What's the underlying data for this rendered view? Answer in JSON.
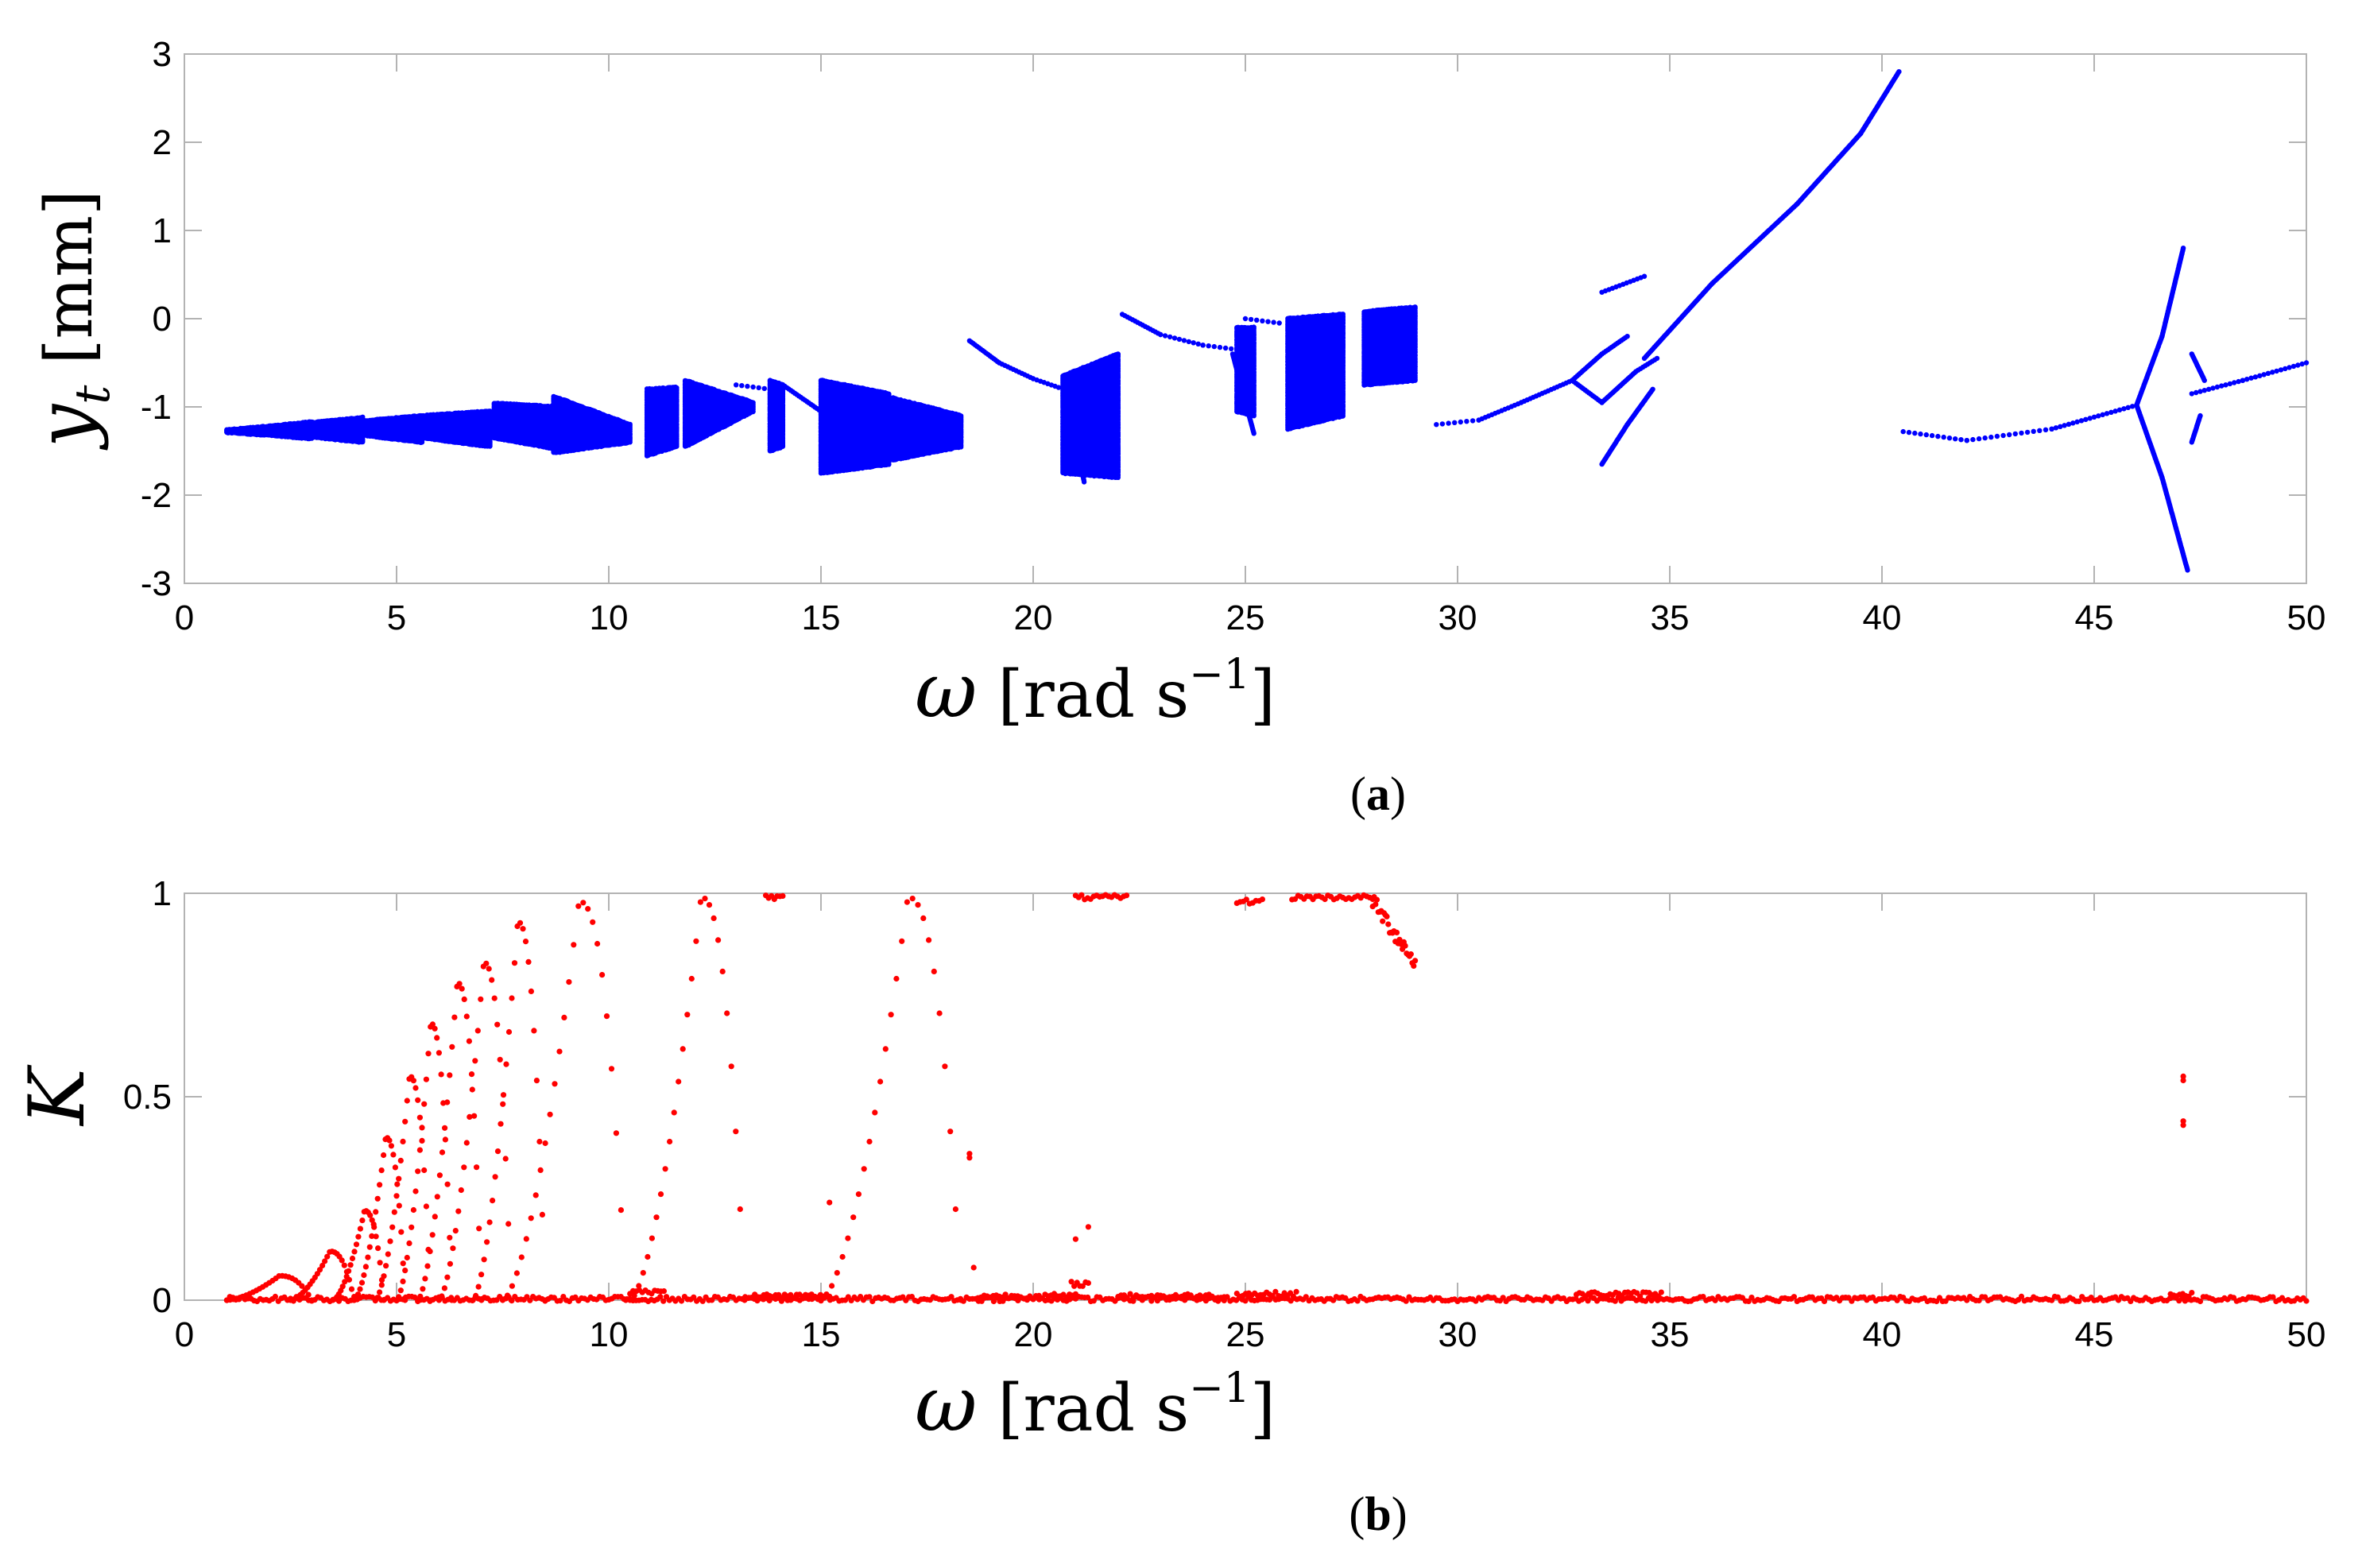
{
  "chart_data": [
    {
      "type": "scatter",
      "panel_label": "a",
      "xlabel": "ω [rad s⁻¹]",
      "ylabel": "y_t [mm]",
      "xlim": [
        0,
        50
      ],
      "ylim": [
        -3,
        3
      ],
      "xticks": [
        "0",
        "5",
        "10",
        "15",
        "20",
        "25",
        "30",
        "35",
        "40",
        "45",
        "50"
      ],
      "yticks": [
        "3",
        "2",
        "1",
        "0",
        "-1",
        "-2",
        "-3"
      ],
      "grid": false,
      "series": [
        {
          "color": "#0000ff",
          "bands": [
            {
              "x0": 1.0,
              "x1": 2.0,
              "top0": -1.26,
              "top1": -1.22,
              "bot0": -1.29,
              "bot1": -1.32
            },
            {
              "x0": 2.0,
              "x1": 3.0,
              "top0": -1.22,
              "top1": -1.17,
              "bot0": -1.32,
              "bot1": -1.36
            },
            {
              "x0": 3.0,
              "x1": 4.2,
              "top0": -1.18,
              "top1": -1.12,
              "bot0": -1.34,
              "bot1": -1.4
            },
            {
              "x0": 4.2,
              "x1": 5.6,
              "top0": -1.16,
              "top1": -1.1,
              "bot0": -1.32,
              "bot1": -1.4
            },
            {
              "x0": 5.6,
              "x1": 7.2,
              "top0": -1.1,
              "top1": -1.05,
              "bot0": -1.35,
              "bot1": -1.45
            },
            {
              "x0": 7.3,
              "x1": 8.8,
              "top0": -0.96,
              "top1": -1.0,
              "bot0": -1.35,
              "bot1": -1.48
            },
            {
              "x0": 8.7,
              "x1": 10.5,
              "top0": -0.88,
              "top1": -1.2,
              "bot0": -1.52,
              "bot1": -1.4
            },
            {
              "x0": 10.9,
              "x1": 11.6,
              "top0": -0.8,
              "top1": -0.78,
              "bot0": -1.55,
              "bot1": -1.45
            },
            {
              "x0": 11.8,
              "x1": 13.4,
              "top0": -0.7,
              "top1": -0.95,
              "bot0": -1.45,
              "bot1": -1.05
            },
            {
              "x0": 13.8,
              "x1": 14.1,
              "top0": -0.7,
              "top1": -0.75,
              "bot0": -1.5,
              "bot1": -1.45
            },
            {
              "x0": 15.0,
              "x1": 16.6,
              "top0": -0.7,
              "top1": -0.85,
              "bot0": -1.75,
              "bot1": -1.65
            },
            {
              "x0": 16.7,
              "x1": 18.3,
              "top0": -0.9,
              "top1": -1.1,
              "bot0": -1.6,
              "bot1": -1.45
            },
            {
              "x0": 20.7,
              "x1": 22.0,
              "top0": -0.65,
              "top1": -0.4,
              "bot0": -1.75,
              "bot1": -1.8
            },
            {
              "x0": 24.8,
              "x1": 25.2,
              "top0": -0.1,
              "top1": -0.1,
              "bot0": -1.05,
              "bot1": -1.1
            },
            {
              "x0": 26.0,
              "x1": 27.3,
              "top0": 0.0,
              "top1": 0.05,
              "bot0": -1.25,
              "bot1": -1.1
            },
            {
              "x0": 27.8,
              "x1": 29.0,
              "top0": 0.08,
              "top1": 0.13,
              "bot0": -0.75,
              "bot1": -0.7
            }
          ],
          "curves": [
            [
              [
                18.5,
                -0.25
              ],
              [
                19.2,
                -0.5
              ],
              [
                20.0,
                -0.68
              ],
              [
                20.6,
                -0.78
              ]
            ],
            [
              [
                20.8,
                -0.8
              ],
              [
                21.0,
                -1.3
              ],
              [
                21.2,
                -1.85
              ]
            ],
            [
              [
                22.1,
                0.05
              ],
              [
                23.0,
                -0.18
              ],
              [
                24.0,
                -0.3
              ],
              [
                24.8,
                -0.35
              ]
            ],
            [
              [
                25.0,
                0.0
              ],
              [
                25.8,
                -0.05
              ]
            ],
            [
              [
                24.7,
                -0.4
              ],
              [
                25.2,
                -1.3
              ]
            ],
            [
              [
                13.0,
                -0.75
              ],
              [
                13.8,
                -0.8
              ]
            ],
            [
              [
                14.1,
                -0.75
              ],
              [
                15.0,
                -1.05
              ]
            ],
            [
              [
                29.5,
                -1.2
              ],
              [
                30.5,
                -1.15
              ],
              [
                31.5,
                -0.95
              ],
              [
                32.7,
                -0.7
              ]
            ],
            [
              [
                32.7,
                -0.7
              ],
              [
                33.4,
                -0.95
              ],
              [
                34.2,
                -0.6
              ],
              [
                34.7,
                -0.45
              ]
            ],
            [
              [
                32.7,
                -0.7
              ],
              [
                33.4,
                -0.4
              ],
              [
                34.0,
                -0.2
              ]
            ],
            [
              [
                33.4,
                0.3
              ],
              [
                34.4,
                0.48
              ]
            ],
            [
              [
                33.4,
                -1.65
              ],
              [
                34.0,
                -1.2
              ],
              [
                34.6,
                -0.8
              ]
            ],
            [
              [
                34.4,
                -0.45
              ],
              [
                36.0,
                0.4
              ],
              [
                38.0,
                1.3
              ],
              [
                39.5,
                2.1
              ],
              [
                40.4,
                2.8
              ]
            ],
            [
              [
                40.5,
                -1.28
              ],
              [
                42.0,
                -1.38
              ],
              [
                44.0,
                -1.25
              ],
              [
                46.0,
                -0.98
              ]
            ],
            [
              [
                46.0,
                -0.98
              ],
              [
                46.6,
                -0.2
              ],
              [
                47.0,
                0.6
              ],
              [
                47.1,
                0.8
              ]
            ],
            [
              [
                46.0,
                -0.98
              ],
              [
                46.6,
                -1.8
              ],
              [
                47.0,
                -2.5
              ],
              [
                47.2,
                -2.85
              ]
            ],
            [
              [
                47.3,
                -0.85
              ],
              [
                48.5,
                -0.7
              ],
              [
                50.0,
                -0.5
              ]
            ],
            [
              [
                47.3,
                -0.4
              ],
              [
                47.6,
                -0.7
              ]
            ],
            [
              [
                47.3,
                -1.4
              ],
              [
                47.5,
                -1.1
              ]
            ]
          ]
        }
      ]
    },
    {
      "type": "scatter",
      "panel_label": "b",
      "xlabel": "ω [rad s⁻¹]",
      "ylabel": "K",
      "xlim": [
        0,
        50
      ],
      "ylim": [
        0,
        1
      ],
      "xticks": [
        "0",
        "5",
        "10",
        "15",
        "20",
        "25",
        "30",
        "35",
        "40",
        "45",
        "50"
      ],
      "yticks": [
        "1",
        "0.5",
        "0"
      ],
      "grid": false,
      "series": [
        {
          "color": "#ff0000",
          "arcs": [
            {
              "x_start": 1.0,
              "x_end": 3.0,
              "peak": 0.06
            },
            {
              "x_start": 2.5,
              "x_end": 4.0,
              "peak": 0.12
            },
            {
              "x_start": 3.5,
              "x_end": 4.7,
              "peak": 0.22
            },
            {
              "x_start": 4.0,
              "x_end": 5.2,
              "peak": 0.4
            },
            {
              "x_start": 4.5,
              "x_end": 5.8,
              "peak": 0.55
            },
            {
              "x_start": 5.0,
              "x_end": 6.3,
              "peak": 0.68
            },
            {
              "x_start": 5.5,
              "x_end": 7.0,
              "peak": 0.78
            },
            {
              "x_start": 6.0,
              "x_end": 7.7,
              "peak": 0.83
            },
            {
              "x_start": 6.8,
              "x_end": 8.5,
              "peak": 0.93
            },
            {
              "x_start": 7.5,
              "x_end": 10.4,
              "peak": 0.98
            },
            {
              "x_start": 10.5,
              "x_end": 13.2,
              "peak": 0.99
            },
            {
              "x_start": 15.0,
              "x_end": 18.3,
              "peak": 0.99
            }
          ],
          "flat_runs": [
            {
              "x0": 1.0,
              "x1": 50.0,
              "y": 0.003
            },
            {
              "x0": 10.5,
              "x1": 11.3,
              "y": 0.02
            },
            {
              "x0": 13.3,
              "x1": 15.2,
              "y": 0.01
            },
            {
              "x0": 18.7,
              "x1": 21.0,
              "y": 0.01
            },
            {
              "x0": 20.9,
              "x1": 21.3,
              "y": 0.04
            },
            {
              "x0": 22.0,
              "x1": 24.5,
              "y": 0.01
            },
            {
              "x0": 24.8,
              "x1": 26.2,
              "y": 0.015
            },
            {
              "x0": 32.8,
              "x1": 34.8,
              "y": 0.015
            },
            {
              "x0": 46.8,
              "x1": 47.3,
              "y": 0.015
            },
            {
              "x0": 13.7,
              "x1": 14.1,
              "y": 0.99
            },
            {
              "x0": 21.0,
              "x1": 22.2,
              "y": 0.99
            },
            {
              "x0": 24.8,
              "x1": 25.4,
              "y": 0.98
            },
            {
              "x0": 26.1,
              "x1": 28.0,
              "y": 0.99
            }
          ],
          "decay_runs": [
            {
              "x0": 28.0,
              "x1": 29.0,
              "y0": 0.98,
              "y1": 0.83
            }
          ],
          "isolated": [
            [
              15.2,
              0.24
            ],
            [
              18.5,
              0.36
            ],
            [
              18.5,
              0.35
            ],
            [
              18.6,
              0.08
            ],
            [
              21.0,
              0.15
            ],
            [
              21.3,
              0.18
            ],
            [
              47.1,
              0.55
            ],
            [
              47.1,
              0.54
            ],
            [
              47.1,
              0.44
            ],
            [
              47.1,
              0.43
            ]
          ]
        }
      ]
    }
  ]
}
